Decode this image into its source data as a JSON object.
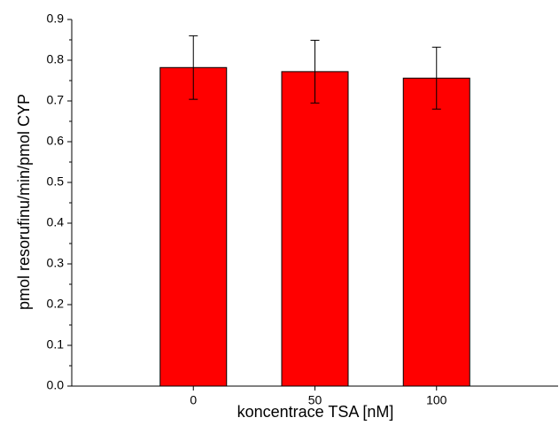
{
  "chart_data": {
    "type": "bar",
    "categories": [
      "0",
      "50",
      "100"
    ],
    "values": [
      0.782,
      0.772,
      0.756
    ],
    "errors": [
      0.078,
      0.077,
      0.076
    ],
    "xlabel": "koncentrace TSA [nM]",
    "ylabel": "pmol resorufinu/min/pmol CYP",
    "ylim": [
      0.0,
      0.9
    ],
    "yticks": [
      "0.0",
      "0.1",
      "0.2",
      "0.3",
      "0.4",
      "0.5",
      "0.6",
      "0.7",
      "0.8",
      "0.9"
    ],
    "grid": false,
    "legend": "none",
    "bar_color": "#ff0000",
    "axis_color": "#000000"
  }
}
